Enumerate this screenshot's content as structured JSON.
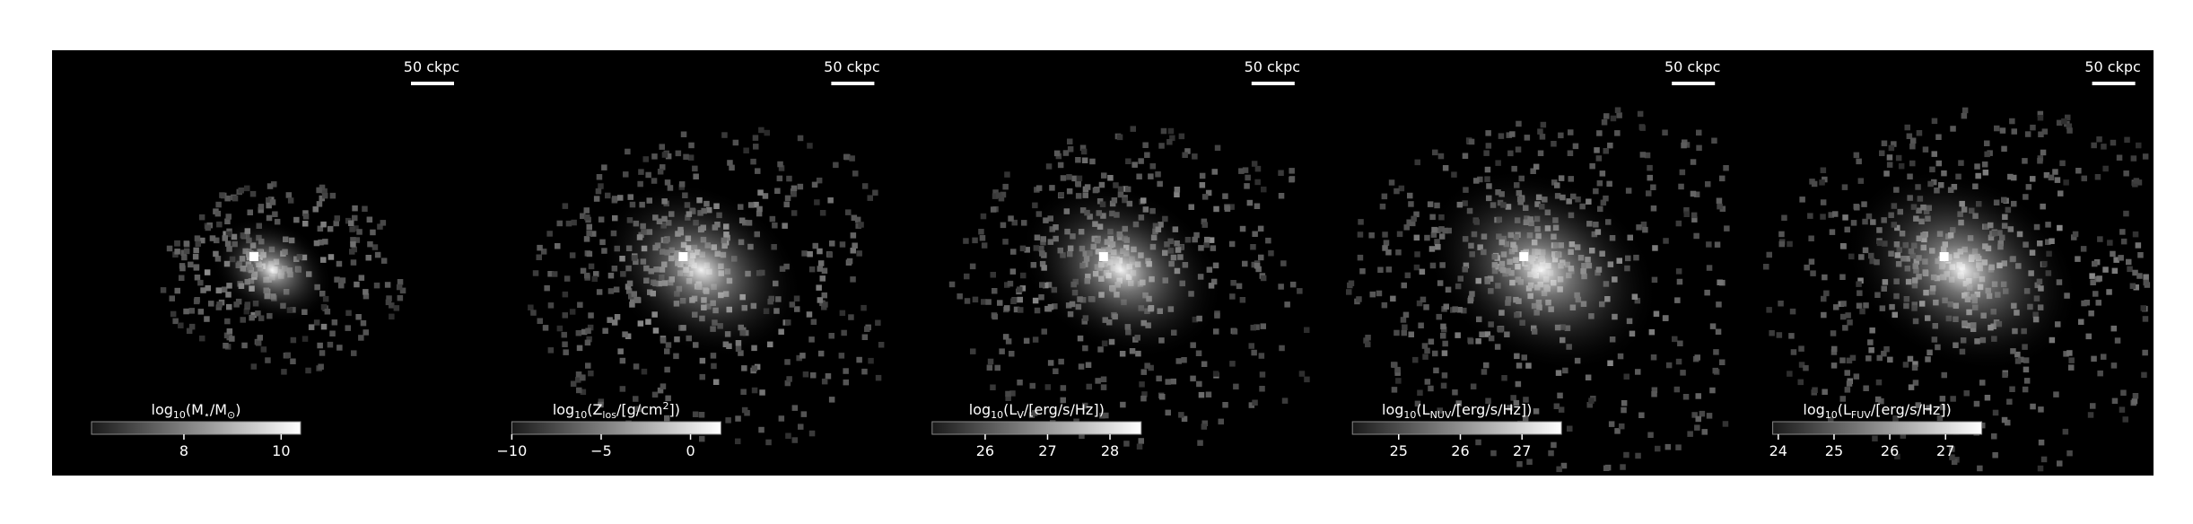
{
  "chart_data": [
    {
      "type": "image-map",
      "scale_bar": "50 ckpc",
      "colorbar_label": [
        {
          "text": "log"
        },
        {
          "text": "10",
          "sub": true
        },
        {
          "text": "(M"
        },
        {
          "text": "⋆",
          "sub": true
        },
        {
          "text": "/M"
        },
        {
          "text": "⊙",
          "sub": true
        },
        {
          "text": ")"
        }
      ],
      "clim": [
        6.1,
        10.4
      ],
      "cticks": [
        8,
        10
      ]
    },
    {
      "type": "image-map",
      "scale_bar": "50 ckpc",
      "colorbar_label": [
        {
          "text": "log"
        },
        {
          "text": "10",
          "sub": true
        },
        {
          "text": "(Z"
        },
        {
          "text": "los",
          "sub": true
        },
        {
          "text": "/[g/cm"
        },
        {
          "text": "2",
          "sup": true
        },
        {
          "text": "])"
        }
      ],
      "clim": [
        -10,
        1.7
      ],
      "cticks": [
        {
          "value": -10,
          "label": "−10"
        },
        {
          "value": -5,
          "label": "−5"
        },
        0
      ]
    },
    {
      "type": "image-map",
      "scale_bar": "50 ckpc",
      "colorbar_label": [
        {
          "text": "log"
        },
        {
          "text": "10",
          "sub": true
        },
        {
          "text": "(L"
        },
        {
          "text": "V",
          "sub": true
        },
        {
          "text": "/[erg/s/Hz])"
        }
      ],
      "clim": [
        25.15,
        28.5
      ],
      "cticks": [
        26,
        27,
        28
      ]
    },
    {
      "type": "image-map",
      "scale_bar": "50 ckpc",
      "colorbar_label": [
        {
          "text": "log"
        },
        {
          "text": "10",
          "sub": true
        },
        {
          "text": "(L"
        },
        {
          "text": "NUV",
          "sub": true
        },
        {
          "text": "/[erg/s/Hz])"
        }
      ],
      "clim": [
        24.25,
        27.64
      ],
      "cticks": [
        25,
        26,
        27
      ]
    },
    {
      "type": "image-map",
      "scale_bar": "50 ckpc",
      "colorbar_label": [
        {
          "text": "log"
        },
        {
          "text": "10",
          "sub": true
        },
        {
          "text": "(L"
        },
        {
          "text": "FUV",
          "sub": true
        },
        {
          "text": "/[erg/s/Hz])"
        }
      ],
      "clim": [
        23.9,
        27.65
      ],
      "cticks": [
        24,
        25,
        26,
        27
      ]
    }
  ]
}
